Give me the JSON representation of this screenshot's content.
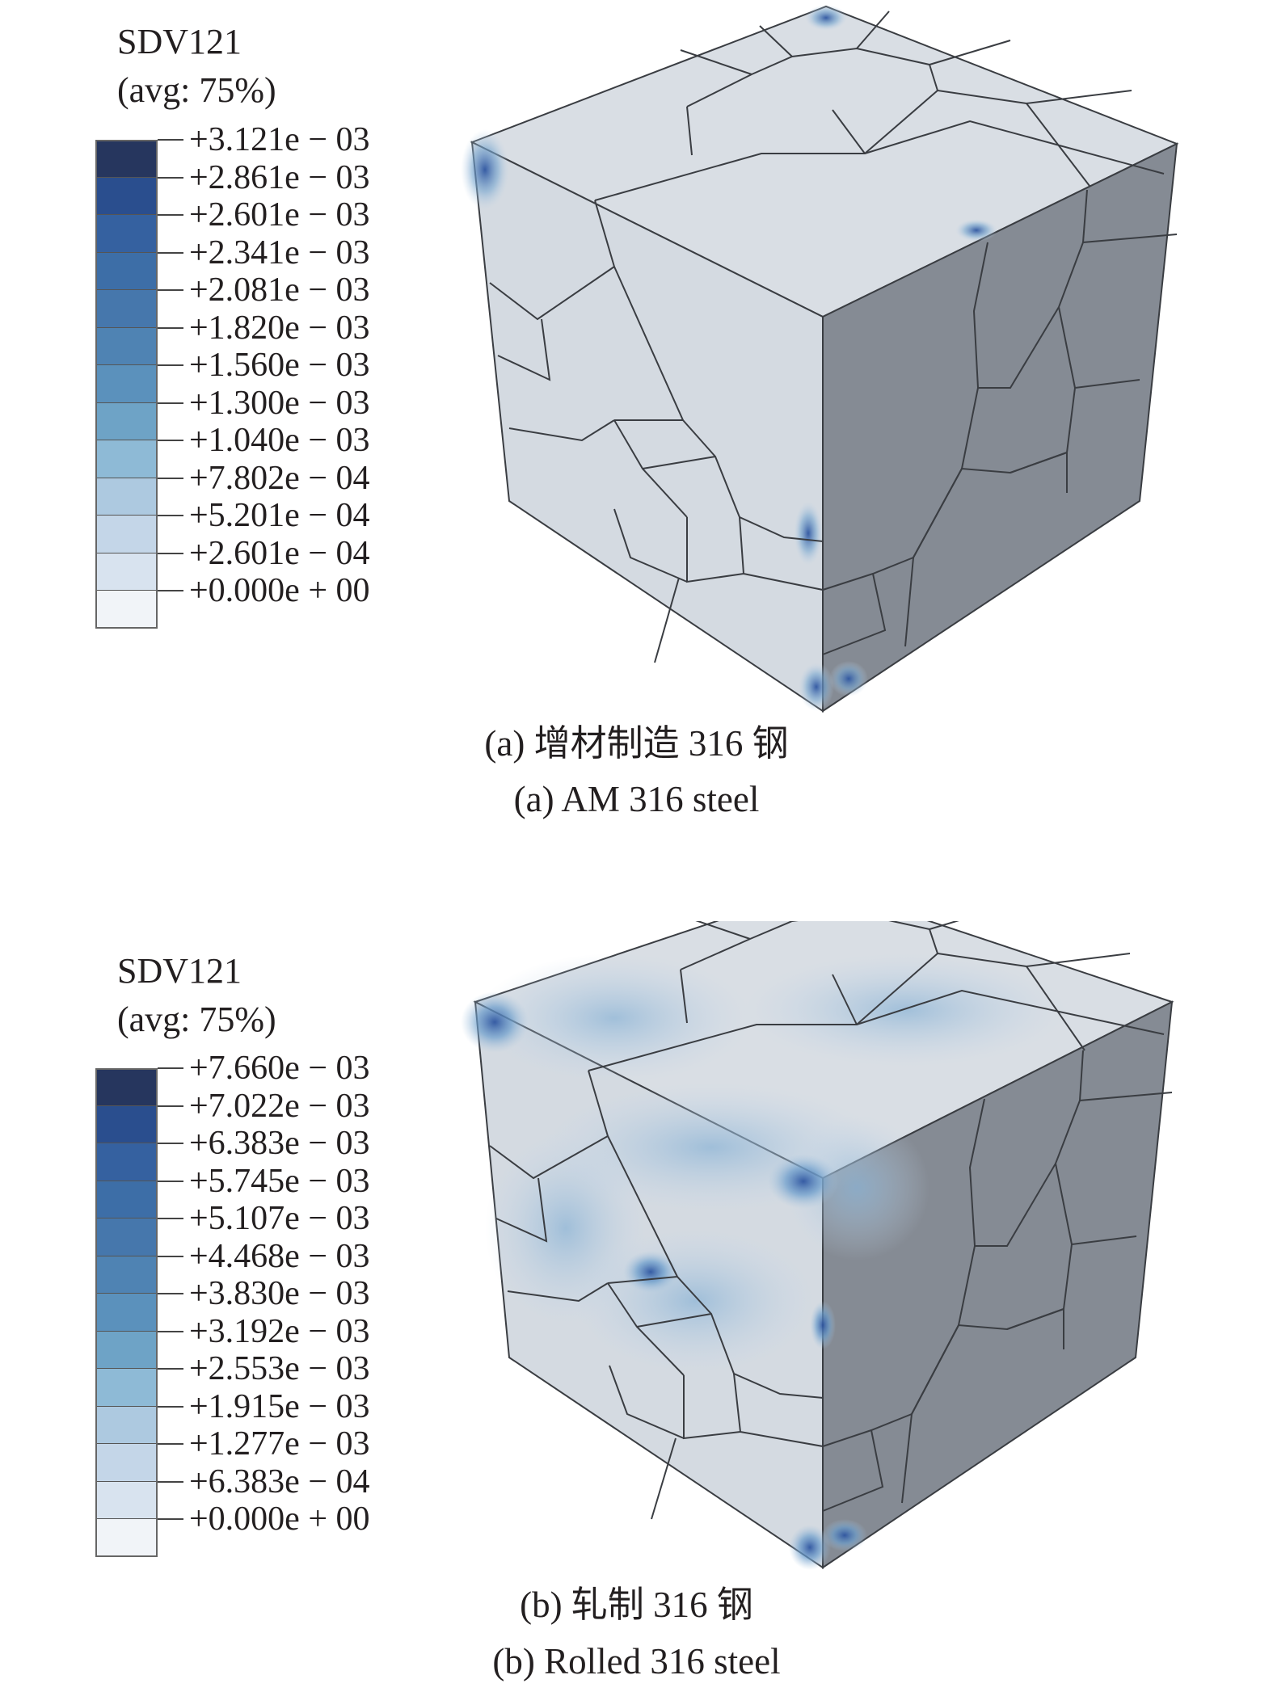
{
  "panels": [
    {
      "id": "a",
      "legend": {
        "title": "SDV121",
        "subtitle": "(avg: 75%)",
        "labels": [
          "+3.121e − 03",
          "+2.861e − 03",
          "+2.601e − 03",
          "+2.341e − 03",
          "+2.081e − 03",
          "+1.820e − 03",
          "+1.560e − 03",
          "+1.300e − 03",
          "+1.040e − 03",
          "+7.802e − 04",
          "+5.201e − 04",
          "+2.601e − 04",
          "+0.000e + 00"
        ]
      },
      "caption_cn": "(a) 增材制造 316 钢",
      "caption_en": "(a) AM 316 steel"
    },
    {
      "id": "b",
      "legend": {
        "title": "SDV121",
        "subtitle": "(avg: 75%)",
        "labels": [
          "+7.660e − 03",
          "+7.022e − 03",
          "+6.383e − 03",
          "+5.745e − 03",
          "+5.107e − 03",
          "+4.468e − 03",
          "+3.830e − 03",
          "+3.192e − 03",
          "+2.553e − 03",
          "+1.915e − 03",
          "+1.277e − 03",
          "+6.383e − 04",
          "+0.000e + 00"
        ]
      },
      "caption_cn": "(b) 轧制 316 钢",
      "caption_en": "(b) Rolled 316 steel"
    }
  ],
  "colors": {
    "legend_scale": [
      "#26365e",
      "#2a4e8e",
      "#3561a0",
      "#3d6ea7",
      "#4677ac",
      "#4f83b3",
      "#5b91bc",
      "#6ea3c6",
      "#8ebad6",
      "#adc9e0",
      "#c4d6e8",
      "#d8e3ef",
      "#f1f4f8"
    ],
    "top_face": "#d9dee4",
    "left_face": "#d4dae1",
    "right_face": "#858b94",
    "grain_boundary": "#3a3d42"
  }
}
